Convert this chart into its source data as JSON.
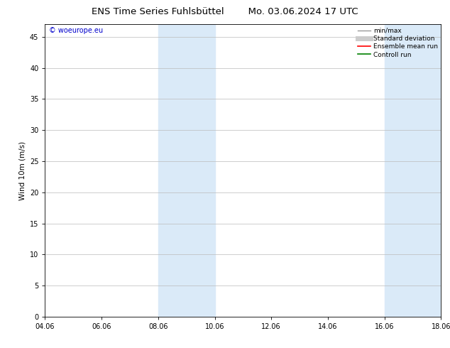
{
  "title_left": "ENS Time Series Fuhlsbüttel",
  "title_right": "Mo. 03.06.2024 17 UTC",
  "ylabel": "Wind 10m (m/s)",
  "watermark": "© woeurope.eu",
  "watermark_color": "#0000cc",
  "xmin": 4.06,
  "xmax": 18.06,
  "ymin": 0,
  "ymax": 47,
  "yticks": [
    0,
    5,
    10,
    15,
    20,
    25,
    30,
    35,
    40,
    45
  ],
  "xtick_labels": [
    "04.06",
    "06.06",
    "08.06",
    "10.06",
    "12.06",
    "14.06",
    "16.06",
    "18.06"
  ],
  "xtick_positions": [
    4.06,
    6.06,
    8.06,
    10.06,
    12.06,
    14.06,
    16.06,
    18.06
  ],
  "shaded_bands": [
    {
      "xmin": 8.06,
      "xmax": 10.06
    },
    {
      "xmin": 16.06,
      "xmax": 18.06
    }
  ],
  "shaded_color": "#daeaf8",
  "legend_items": [
    {
      "label": "min/max",
      "color": "#999999",
      "lw": 1.0,
      "style": "solid"
    },
    {
      "label": "Standard deviation",
      "color": "#cccccc",
      "lw": 5,
      "style": "solid"
    },
    {
      "label": "Ensemble mean run",
      "color": "#ff0000",
      "lw": 1.2,
      "style": "solid"
    },
    {
      "label": "Controll run",
      "color": "#008000",
      "lw": 1.2,
      "style": "solid"
    }
  ],
  "background_color": "#ffffff",
  "grid_color": "#bbbbbb",
  "title_fontsize": 9.5,
  "label_fontsize": 7.5,
  "tick_fontsize": 7,
  "watermark_fontsize": 7,
  "legend_fontsize": 6.5
}
